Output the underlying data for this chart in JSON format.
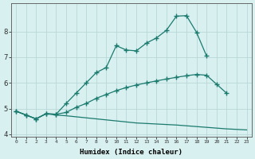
{
  "xlabel": "Humidex (Indice chaleur)",
  "bg_color": "#d8f0f0",
  "line_color": "#1a7a6e",
  "grid_color": "#b8d8d8",
  "xlim": [
    -0.5,
    23.5
  ],
  "ylim": [
    3.9,
    9.1
  ],
  "yticks": [
    4,
    5,
    6,
    7,
    8
  ],
  "xticks": [
    0,
    1,
    2,
    3,
    4,
    5,
    6,
    7,
    8,
    9,
    10,
    11,
    12,
    13,
    14,
    15,
    16,
    17,
    18,
    19,
    20,
    21,
    22,
    23
  ],
  "line1_x": [
    0,
    1,
    2,
    3,
    4,
    5,
    6,
    7,
    8,
    9,
    10,
    11,
    12,
    13,
    14,
    15,
    16,
    17,
    18,
    19,
    20,
    21,
    22,
    23
  ],
  "line1_y": [
    4.9,
    4.75,
    4.6,
    4.8,
    4.75,
    4.72,
    4.68,
    4.64,
    4.6,
    4.56,
    4.52,
    4.48,
    4.44,
    4.42,
    4.4,
    4.38,
    4.36,
    4.33,
    4.3,
    4.27,
    4.24,
    4.21,
    4.19,
    4.17
  ],
  "line2_x": [
    0,
    1,
    2,
    3,
    4,
    5,
    6,
    7,
    8,
    9,
    10,
    11,
    12,
    13,
    14,
    15,
    16,
    17,
    18,
    19,
    20,
    21,
    22,
    23
  ],
  "line2_y": [
    4.9,
    4.75,
    4.6,
    4.8,
    4.78,
    4.85,
    5.05,
    5.2,
    5.4,
    5.55,
    5.7,
    5.82,
    5.92,
    6.0,
    6.08,
    6.15,
    6.22,
    6.28,
    6.33,
    6.3,
    5.95,
    5.6,
    null,
    null
  ],
  "line3_x": [
    0,
    1,
    2,
    3,
    4,
    5,
    6,
    7,
    8,
    9,
    10,
    11,
    12,
    13,
    14,
    15,
    16,
    17,
    18,
    19,
    20,
    21,
    22,
    23
  ],
  "line3_y": [
    4.9,
    4.75,
    4.6,
    4.8,
    4.78,
    5.2,
    5.6,
    6.0,
    6.4,
    6.6,
    7.45,
    7.28,
    7.25,
    7.55,
    7.75,
    8.05,
    8.6,
    8.62,
    7.97,
    7.05,
    null,
    null,
    null,
    null
  ]
}
